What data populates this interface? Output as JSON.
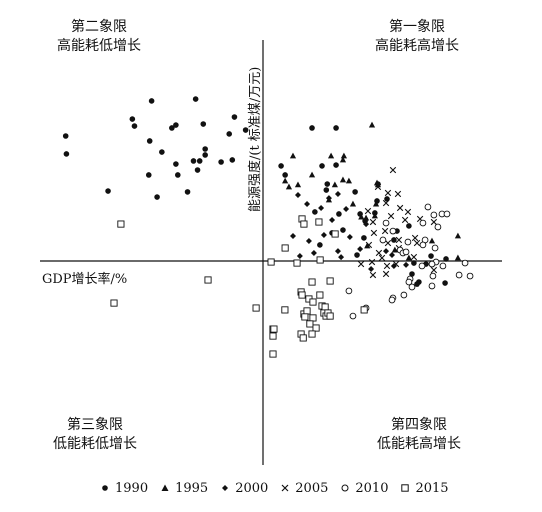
{
  "chart_data": {
    "type": "scatter",
    "title": "",
    "xlabel": "GDP增长率/%",
    "ylabel": "能源强度/(t 标准煤/万元)",
    "xlim": [
      -100,
      100
    ],
    "ylim": [
      -100,
      100
    ],
    "grid": false,
    "legend_position": "bottom",
    "quadrants": {
      "q1": {
        "line1": "第一象限",
        "line2": "高能耗高增长"
      },
      "q2": {
        "line1": "第二象限",
        "line2": "高能耗低增长"
      },
      "q3": {
        "line1": "第三象限",
        "line2": "低能耗低增长"
      },
      "q4": {
        "line1": "第四象限",
        "line2": "低能耗高增长"
      }
    },
    "series": [
      {
        "name": "1990",
        "marker": "dot",
        "points": [
          [
            -46.8,
            93.6
          ],
          [
            -28.3,
            94.7
          ],
          [
            -54.9,
            83.0
          ],
          [
            -54.0,
            78.9
          ],
          [
            -36.6,
            79.5
          ],
          [
            -38.3,
            77.8
          ],
          [
            -25.1,
            80.1
          ],
          [
            -12.0,
            84.2
          ],
          [
            -7.3,
            76.6
          ],
          [
            -14.2,
            74.3
          ],
          [
            -82.9,
            73.1
          ],
          [
            -47.6,
            70.2
          ],
          [
            -42.5,
            63.7
          ],
          [
            -24.3,
            65.5
          ],
          [
            -24.3,
            62.0
          ],
          [
            -26.6,
            58.5
          ],
          [
            -29.2,
            58.5
          ],
          [
            -12.9,
            59.1
          ],
          [
            -17.6,
            57.9
          ],
          [
            -82.6,
            62.6
          ],
          [
            -36.6,
            56.7
          ],
          [
            -27.5,
            53.2
          ],
          [
            -48.0,
            50.3
          ],
          [
            -35.8,
            50.3
          ],
          [
            -65.1,
            40.9
          ],
          [
            -31.7,
            40.4
          ],
          [
            -44.5,
            37.4
          ],
          [
            20.6,
            77.8
          ],
          [
            30.7,
            77.8
          ],
          [
            7.6,
            55.6
          ],
          [
            9.3,
            50.3
          ],
          [
            24.8,
            55.6
          ],
          [
            30.7,
            56.1
          ],
          [
            27.0,
            45.0
          ],
          [
            26.6,
            41.5
          ],
          [
            38.7,
            40.4
          ],
          [
            48.3,
            45.0
          ],
          [
            52.1,
            36.3
          ],
          [
            47.9,
            35.1
          ],
          [
            21.8,
            28.7
          ],
          [
            31.9,
            27.5
          ],
          [
            40.8,
            27.5
          ],
          [
            47.0,
            28.1
          ],
          [
            42.9,
            23.4
          ],
          [
            61.3,
            20.5
          ],
          [
            33.6,
            18.1
          ],
          [
            29.0,
            16.4
          ],
          [
            42.4,
            13.5
          ],
          [
            56.3,
            17.5
          ],
          [
            55.0,
            12.3
          ],
          [
            23.9,
            9.4
          ],
          [
            39.5,
            3.5
          ],
          [
            70.6,
            2.9
          ],
          [
            63.4,
            -1.2
          ],
          [
            68.5,
            -1.8
          ],
          [
            76.9,
            1.2
          ],
          [
            62.6,
            -7.6
          ],
          [
            65.5,
            -12.3
          ],
          [
            64.7,
            -13.5
          ],
          [
            76.5,
            -12.9
          ]
        ]
      },
      {
        "name": "1995",
        "marker": "triangle",
        "points": [
          [
            45.8,
            79.5
          ],
          [
            12.6,
            61.4
          ],
          [
            28.6,
            61.4
          ],
          [
            34.0,
            61.4
          ],
          [
            33.6,
            59.1
          ],
          [
            20.6,
            50.3
          ],
          [
            33.6,
            47.4
          ],
          [
            47.9,
            45.6
          ],
          [
            48.3,
            44.5
          ],
          [
            9.3,
            46.8
          ],
          [
            14.7,
            44.5
          ],
          [
            30.2,
            44.5
          ],
          [
            10.9,
            43.3
          ],
          [
            36.1,
            46.8
          ],
          [
            27.7,
            35.7
          ],
          [
            47.5,
            33.3
          ],
          [
            37.8,
            33.3
          ],
          [
            47.0,
            26.3
          ],
          [
            41.3,
            25.7
          ],
          [
            43.3,
            25.1
          ],
          [
            81.9,
            14.6
          ],
          [
            71.0,
            11.7
          ],
          [
            43.8,
            8.8
          ],
          [
            55.4,
            6.4
          ],
          [
            81.9,
            1.8
          ],
          [
            61.3,
            1.8
          ]
        ]
      },
      {
        "name": "2000",
        "marker": "diamond",
        "points": [
          [
            14.7,
            38.6
          ],
          [
            31.5,
            39.2
          ],
          [
            27.7,
            36.8
          ],
          [
            18.5,
            33.3
          ],
          [
            24.4,
            31.0
          ],
          [
            34.9,
            30.4
          ],
          [
            29.0,
            24.0
          ],
          [
            43.3,
            21.6
          ],
          [
            25.6,
            15.2
          ],
          [
            12.6,
            14.6
          ],
          [
            36.5,
            14.0
          ],
          [
            19.3,
            11.7
          ],
          [
            51.7,
            5.8
          ],
          [
            31.5,
            5.8
          ],
          [
            21.4,
            4.7
          ],
          [
            40.8,
            7.0
          ],
          [
            15.5,
            2.9
          ],
          [
            32.8,
            2.3
          ],
          [
            54.2,
            3.5
          ],
          [
            45.4,
            -4.7
          ],
          [
            55.0,
            -2.9
          ],
          [
            60.1,
            -2.3
          ]
        ]
      },
      {
        "name": "2005",
        "marker": "cross",
        "points": [
          [
            54.6,
            53.2
          ],
          [
            48.3,
            43.3
          ],
          [
            52.5,
            39.8
          ],
          [
            56.7,
            39.2
          ],
          [
            51.7,
            33.9
          ],
          [
            44.1,
            29.2
          ],
          [
            57.6,
            31.0
          ],
          [
            60.9,
            28.7
          ],
          [
            53.8,
            26.3
          ],
          [
            46.2,
            22.8
          ],
          [
            59.7,
            24.0
          ],
          [
            66.0,
            24.6
          ],
          [
            71.8,
            22.8
          ],
          [
            51.3,
            17.5
          ],
          [
            46.6,
            16.4
          ],
          [
            63.9,
            13.5
          ],
          [
            52.5,
            10.5
          ],
          [
            57.1,
            12.3
          ],
          [
            64.7,
            10.5
          ],
          [
            44.5,
            9.4
          ],
          [
            57.1,
            7.6
          ],
          [
            59.7,
            5.3
          ],
          [
            48.7,
            4.7
          ],
          [
            50.0,
            1.8
          ],
          [
            63.4,
            2.3
          ],
          [
            52.1,
            -2.9
          ],
          [
            55.9,
            -1.8
          ],
          [
            45.8,
            -0.6
          ],
          [
            41.2,
            -1.8
          ],
          [
            51.7,
            -7.6
          ],
          [
            46.2,
            -8.2
          ],
          [
            71.8,
            -5.3
          ]
        ]
      },
      {
        "name": "2010",
        "marker": "circle",
        "points": [
          [
            69.3,
            31.6
          ],
          [
            71.8,
            26.9
          ],
          [
            75.2,
            27.5
          ],
          [
            77.3,
            27.5
          ],
          [
            67.2,
            22.2
          ],
          [
            51.7,
            22.2
          ],
          [
            54.6,
            17.5
          ],
          [
            73.5,
            19.9
          ],
          [
            50.4,
            12.3
          ],
          [
            60.9,
            11.1
          ],
          [
            68.1,
            12.3
          ],
          [
            67.2,
            9.4
          ],
          [
            72.3,
            7.6
          ],
          [
            57.6,
            6.4
          ],
          [
            58.8,
            4.7
          ],
          [
            60.1,
            5.3
          ],
          [
            72.7,
            -0.6
          ],
          [
            71.0,
            -1.8
          ],
          [
            66.8,
            -2.9
          ],
          [
            75.6,
            -2.9
          ],
          [
            84.9,
            -1.2
          ],
          [
            61.8,
            -10.5
          ],
          [
            82.4,
            -8.2
          ],
          [
            71.4,
            -8.8
          ],
          [
            87.0,
            -8.8
          ],
          [
            71.0,
            -14.6
          ],
          [
            36.1,
            -17.5
          ],
          [
            61.3,
            -12.3
          ],
          [
            62.6,
            -15.2
          ],
          [
            59.2,
            -19.9
          ],
          [
            54.6,
            -21.6
          ],
          [
            54.2,
            -22.8
          ],
          [
            43.3,
            -27.5
          ],
          [
            37.8,
            -32.2
          ]
        ]
      },
      {
        "name": "2015",
        "marker": "square",
        "points": [
          [
            16.4,
            24.6
          ],
          [
            17.2,
            21.6
          ],
          [
            23.5,
            22.8
          ],
          [
            30.3,
            15.8
          ],
          [
            14.3,
            -1.2
          ],
          [
            24.0,
            0.6
          ],
          [
            9.3,
            7.6
          ],
          [
            3.4,
            -0.6
          ],
          [
            -59.7,
            21.6
          ],
          [
            -23.1,
            -11.1
          ],
          [
            -62.6,
            -24.6
          ],
          [
            -2.9,
            -27.5
          ],
          [
            20.6,
            -12.3
          ],
          [
            28.2,
            -11.7
          ],
          [
            16.0,
            -18.1
          ],
          [
            16.4,
            -19.9
          ],
          [
            23.9,
            -19.9
          ],
          [
            19.3,
            -22.2
          ],
          [
            21.0,
            -24.0
          ],
          [
            24.8,
            -26.3
          ],
          [
            26.1,
            -26.9
          ],
          [
            25.6,
            -30.4
          ],
          [
            26.5,
            -32.2
          ],
          [
            27.3,
            -30.4
          ],
          [
            28.2,
            -32.2
          ],
          [
            17.2,
            -31.0
          ],
          [
            18.5,
            -29.2
          ],
          [
            17.6,
            -32.7
          ],
          [
            21.0,
            -33.3
          ],
          [
            19.7,
            -36.8
          ],
          [
            9.2,
            -28.6
          ],
          [
            42.5,
            -28.6
          ],
          [
            22.3,
            -39.2
          ],
          [
            4.2,
            -39.8
          ],
          [
            4.6,
            -39.8
          ],
          [
            4.2,
            -43.9
          ],
          [
            16.0,
            -42.7
          ],
          [
            16.9,
            -45.0
          ],
          [
            20.6,
            -42.7
          ],
          [
            4.2,
            -54.4
          ]
        ]
      }
    ]
  }
}
